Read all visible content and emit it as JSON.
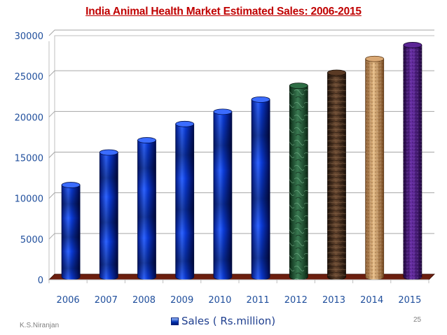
{
  "slide": {
    "author": "K.S.Niranjan",
    "page_number": "25"
  },
  "chart_data": {
    "type": "bar",
    "title": "India Animal Health Market Estimated Sales: 2006-2015",
    "categories": [
      "2006",
      "2007",
      "2008",
      "2009",
      "2010",
      "2011",
      "2012",
      "2013",
      "2014",
      "2015"
    ],
    "series": [
      {
        "name": "Sales ( Rs.million)",
        "values": [
          11300,
          15300,
          16800,
          18800,
          20300,
          21800,
          23500,
          25100,
          26800,
          28500
        ]
      }
    ],
    "bar_styles": [
      "blue",
      "blue",
      "blue",
      "blue",
      "blue",
      "blue",
      "green-marble",
      "brown-wood",
      "tan-granite",
      "purple-granite"
    ],
    "ylim": [
      0,
      30000
    ],
    "yticks": [
      0,
      5000,
      10000,
      15000,
      20000,
      25000,
      30000
    ],
    "xlabel": "",
    "ylabel": "",
    "legend_position": "bottom",
    "grid": true,
    "colors": {
      "blue": "#0a3ad6",
      "green-marble": "#1f5a35",
      "brown-wood": "#4a2e1c",
      "tan-granite": "#c9935a",
      "purple-granite": "#4a1a7a",
      "floor": "#6b1e0e",
      "title": "#c00000",
      "axis_text": "#1f4e9c"
    }
  }
}
